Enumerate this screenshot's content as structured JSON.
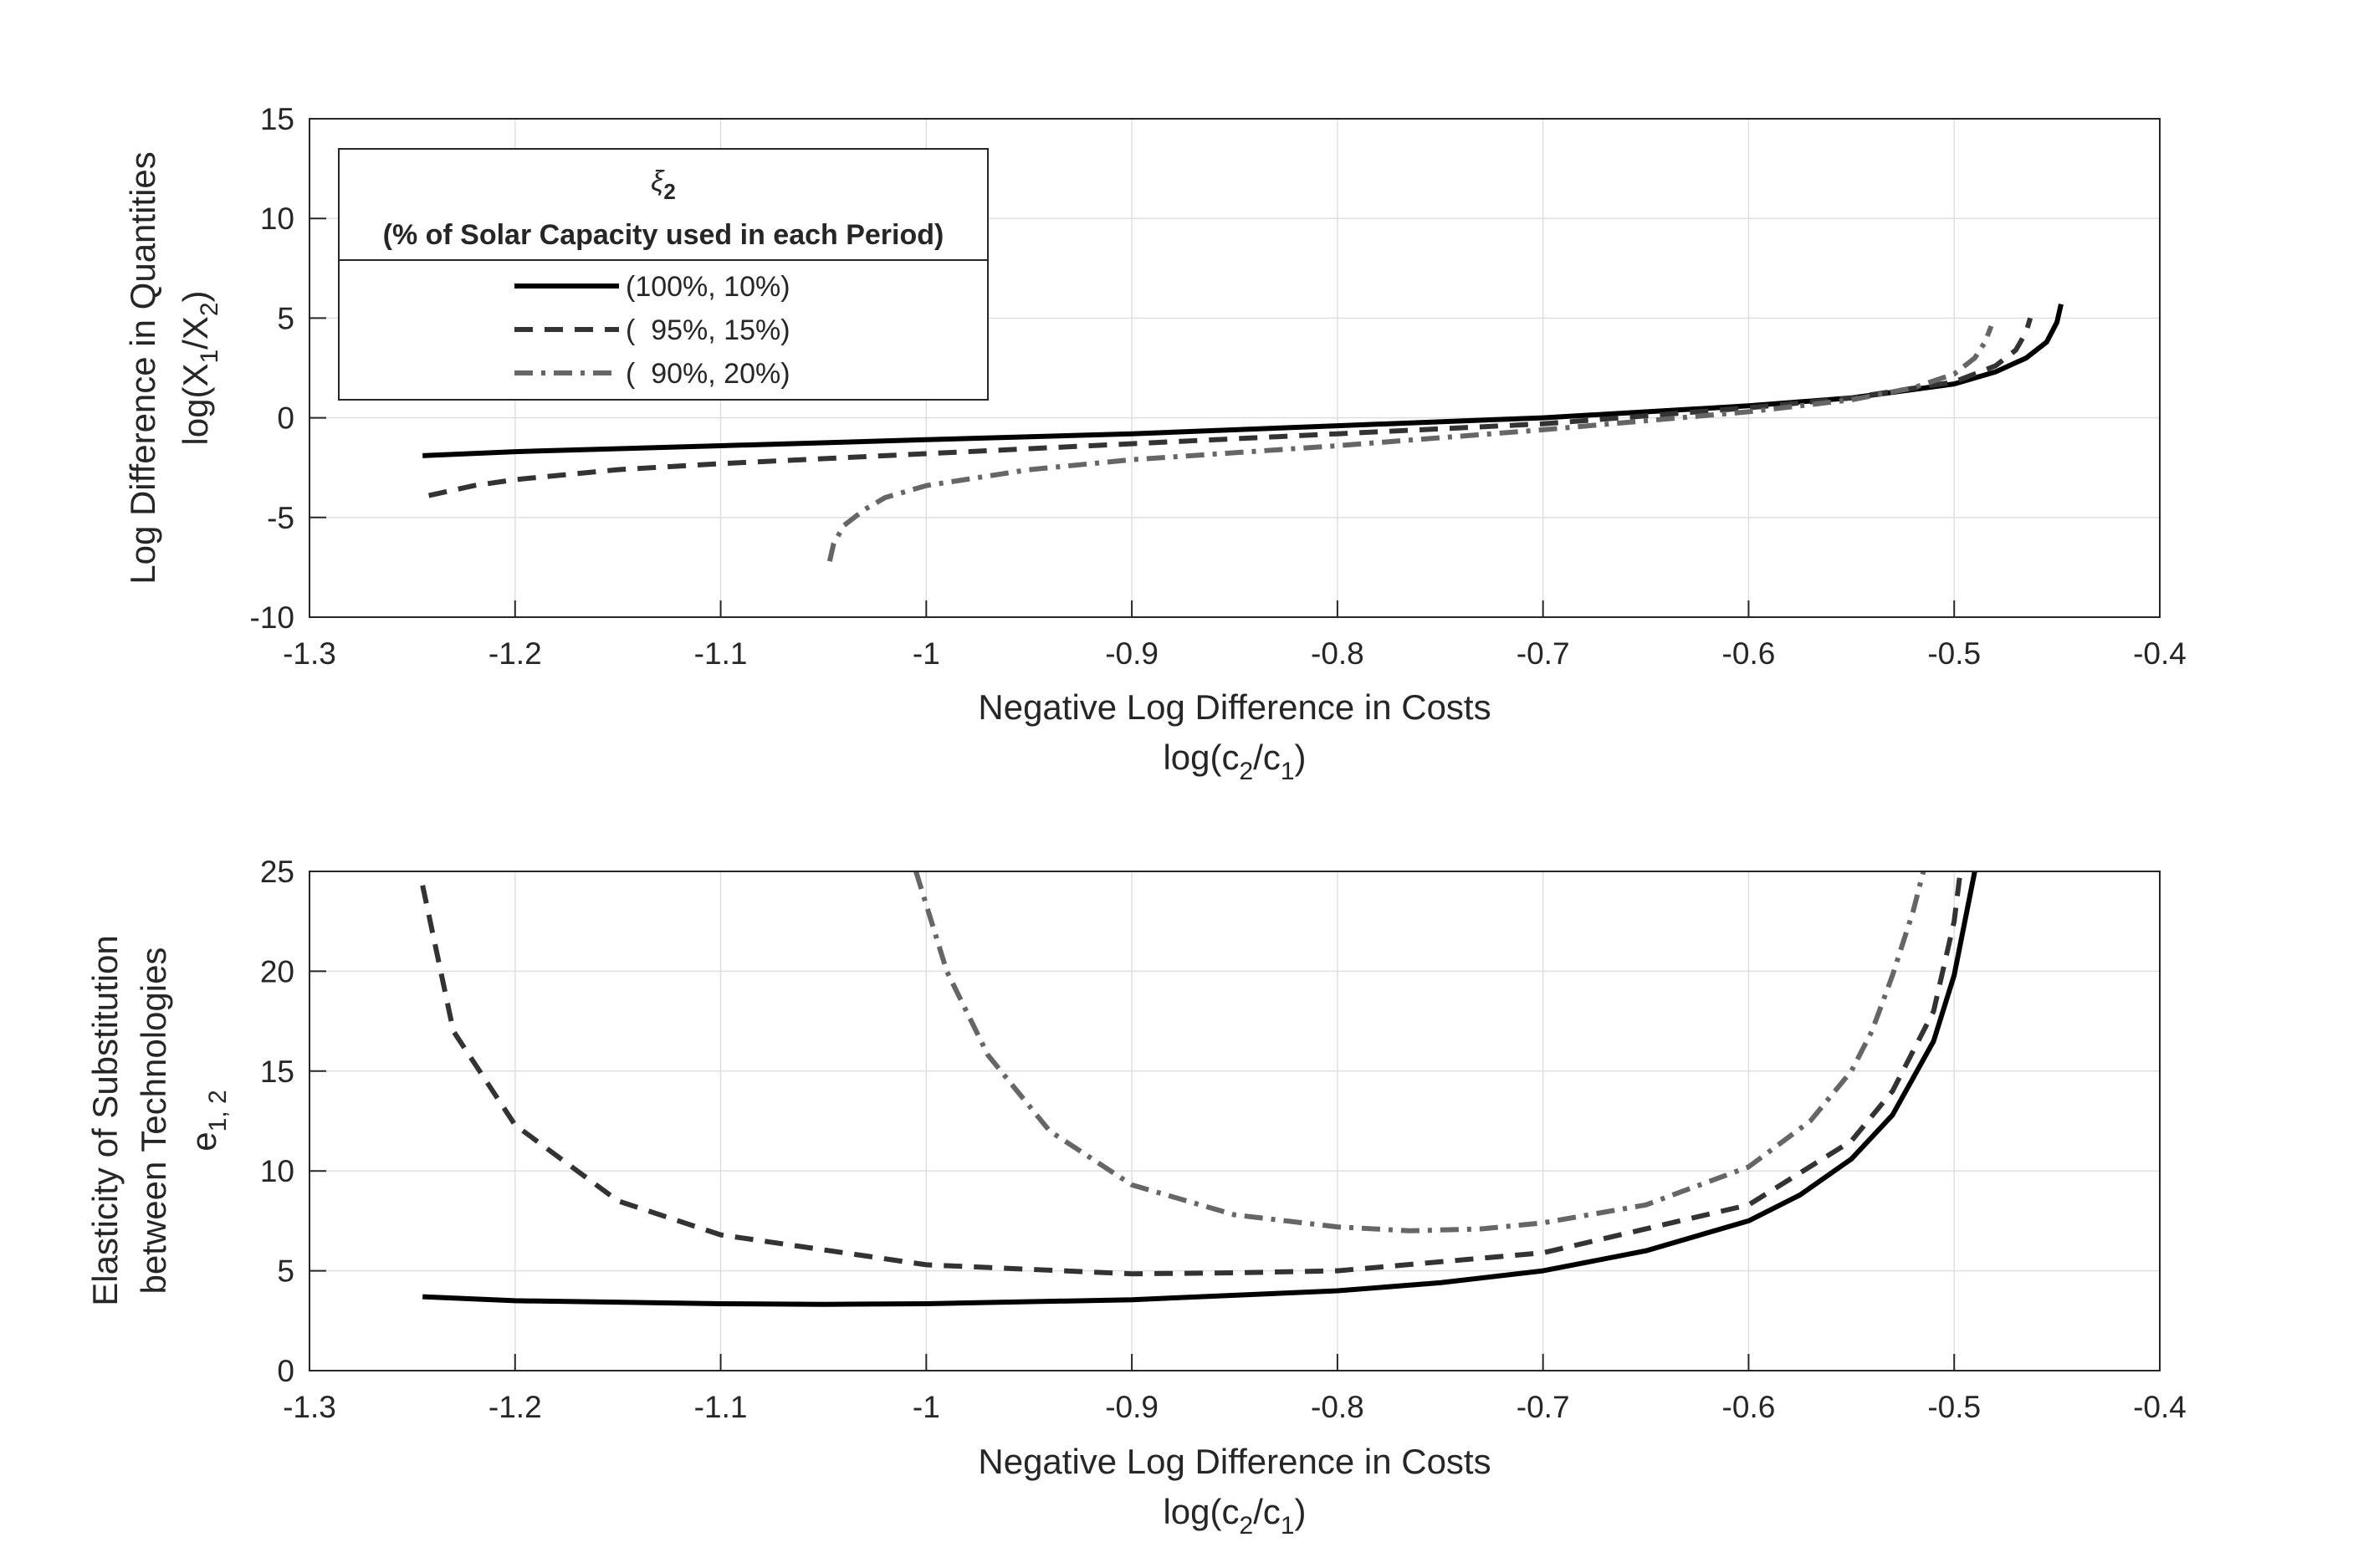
{
  "legend": {
    "title_symbol": "ξ",
    "title_sub": "2",
    "title_line2": "(% of Solar Capacity used in each Period)"
  },
  "chart_data": [
    {
      "type": "line",
      "xlabel_line1": "Negative Log Difference in Costs",
      "xlabel_line2": {
        "text": "log(c",
        "sub1": "2",
        "mid": "/c",
        "sub2": "1",
        "end": ")"
      },
      "ylabel_line1": "Log Difference in Quantities",
      "ylabel_line2": {
        "text": "log(X",
        "sub1": "1",
        "mid": "/X",
        "sub2": "2",
        "end": ")"
      },
      "xlim": [
        -1.3,
        -0.4
      ],
      "ylim": [
        -10,
        15
      ],
      "xticks": [
        -1.3,
        -1.2,
        -1.1,
        -1,
        -0.9,
        -0.8,
        -0.7,
        -0.6,
        -0.5,
        -0.4
      ],
      "xticklabels": [
        "-1.3",
        "-1.2",
        "-1.1",
        "-1",
        "-0.9",
        "-0.8",
        "-0.7",
        "-0.6",
        "-0.5",
        "-0.4"
      ],
      "yticks": [
        -10,
        -5,
        0,
        5,
        10,
        15
      ],
      "yticklabels": [
        "-10",
        "-5",
        "0",
        "5",
        "10",
        "15"
      ],
      "grid": true,
      "legend_position": "top-left",
      "series": [
        {
          "name": "(100%, 10%)",
          "color": "#000000",
          "dash": "solid",
          "x": [
            -1.245,
            -1.2,
            -1.1,
            -1.0,
            -0.9,
            -0.8,
            -0.7,
            -0.6,
            -0.55,
            -0.5,
            -0.48,
            -0.465,
            -0.455,
            -0.45,
            -0.448
          ],
          "y": [
            -1.9,
            -1.7,
            -1.4,
            -1.1,
            -0.8,
            -0.4,
            0.0,
            0.6,
            1.0,
            1.7,
            2.3,
            3.0,
            3.8,
            4.8,
            5.7
          ]
        },
        {
          "name": "(  95%, 15%)",
          "color": "#333333",
          "dash": "dashed",
          "x": [
            -1.242,
            -1.22,
            -1.2,
            -1.15,
            -1.1,
            -1.0,
            -0.9,
            -0.8,
            -0.7,
            -0.6,
            -0.55,
            -0.5,
            -0.48,
            -0.47,
            -0.465,
            -0.463
          ],
          "y": [
            -3.9,
            -3.4,
            -3.1,
            -2.6,
            -2.3,
            -1.8,
            -1.3,
            -0.8,
            -0.3,
            0.5,
            1.0,
            1.8,
            2.6,
            3.4,
            4.3,
            5.0
          ]
        },
        {
          "name": "(  90%, 20%)",
          "color": "#666666",
          "dash": "dashdot",
          "x": [
            -1.047,
            -1.045,
            -1.04,
            -1.03,
            -1.02,
            -1.0,
            -0.95,
            -0.9,
            -0.8,
            -0.7,
            -0.6,
            -0.55,
            -0.52,
            -0.5,
            -0.49,
            -0.485,
            -0.482
          ],
          "y": [
            -7.2,
            -6.3,
            -5.4,
            -4.6,
            -4.0,
            -3.4,
            -2.6,
            -2.1,
            -1.4,
            -0.6,
            0.3,
            0.9,
            1.5,
            2.2,
            3.0,
            3.8,
            4.6
          ]
        }
      ]
    },
    {
      "type": "line",
      "xlabel_line1": "Negative Log Difference in Costs",
      "xlabel_line2": {
        "text": "log(c",
        "sub1": "2",
        "mid": "/c",
        "sub2": "1",
        "end": ")"
      },
      "ylabel_line1": "Elasticity of Substitution",
      "ylabel_line2": "between Technologies",
      "ylabel_line3": {
        "text": "e",
        "sub1": "1, 2"
      },
      "xlim": [
        -1.3,
        -0.4
      ],
      "ylim": [
        0,
        25
      ],
      "xticks": [
        -1.3,
        -1.2,
        -1.1,
        -1,
        -0.9,
        -0.8,
        -0.7,
        -0.6,
        -0.5,
        -0.4
      ],
      "xticklabels": [
        "-1.3",
        "-1.2",
        "-1.1",
        "-1",
        "-0.9",
        "-0.8",
        "-0.7",
        "-0.6",
        "-0.5",
        "-0.4"
      ],
      "yticks": [
        0,
        5,
        10,
        15,
        20,
        25
      ],
      "yticklabels": [
        "0",
        "5",
        "10",
        "15",
        "20",
        "25"
      ],
      "grid": true,
      "series": [
        {
          "name": "(100%, 10%)",
          "color": "#000000",
          "dash": "solid",
          "x": [
            -1.245,
            -1.2,
            -1.1,
            -1.05,
            -1.0,
            -0.9,
            -0.8,
            -0.75,
            -0.7,
            -0.65,
            -0.6,
            -0.575,
            -0.55,
            -0.53,
            -0.51,
            -0.5,
            -0.49
          ],
          "y": [
            3.7,
            3.5,
            3.35,
            3.32,
            3.35,
            3.55,
            4.0,
            4.4,
            5.0,
            6.0,
            7.5,
            8.8,
            10.6,
            12.8,
            16.5,
            19.8,
            25
          ]
        },
        {
          "name": "(  95%, 15%)",
          "color": "#333333",
          "dash": "dashed",
          "x": [
            -1.245,
            -1.23,
            -1.2,
            -1.15,
            -1.1,
            -1.0,
            -0.9,
            -0.85,
            -0.8,
            -0.7,
            -0.6,
            -0.55,
            -0.53,
            -0.51,
            -0.5,
            -0.497
          ],
          "y": [
            24.3,
            17.0,
            12.3,
            8.5,
            6.8,
            5.3,
            4.85,
            4.9,
            5.0,
            5.9,
            8.3,
            11.5,
            14.0,
            18.0,
            22.5,
            25
          ]
        },
        {
          "name": "(  90%, 20%)",
          "color": "#666666",
          "dash": "dashdot",
          "x": [
            -1.005,
            -0.99,
            -0.97,
            -0.94,
            -0.9,
            -0.85,
            -0.8,
            -0.765,
            -0.73,
            -0.7,
            -0.65,
            -0.6,
            -0.57,
            -0.55,
            -0.54,
            -0.53,
            -0.52,
            -0.515
          ],
          "y": [
            25,
            20.0,
            15.8,
            12.0,
            9.3,
            7.8,
            7.2,
            7.0,
            7.1,
            7.4,
            8.3,
            10.2,
            12.5,
            15.0,
            17.0,
            19.8,
            23.0,
            25
          ]
        }
      ]
    }
  ]
}
